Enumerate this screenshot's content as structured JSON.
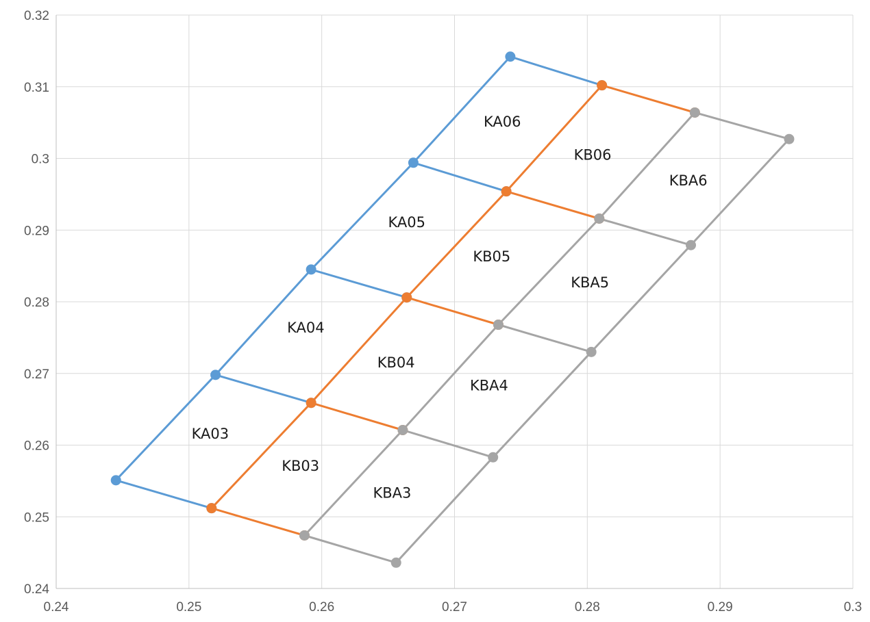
{
  "chart_data": {
    "type": "scatter",
    "title": "",
    "xlabel": "",
    "ylabel": "",
    "xlim": [
      0.24,
      0.3
    ],
    "ylim": [
      0.24,
      0.32
    ],
    "x_ticks": [
      0.24,
      0.25,
      0.26,
      0.27,
      0.28,
      0.29,
      0.3
    ],
    "x_tick_labels": [
      "0.24",
      "0.25",
      "0.26",
      "0.27",
      "0.28",
      "0.29",
      "0.3"
    ],
    "y_ticks": [
      0.24,
      0.25,
      0.26,
      0.27,
      0.28,
      0.29,
      0.3,
      0.31,
      0.32
    ],
    "y_tick_labels": [
      "0.24",
      "0.25",
      "0.26",
      "0.27",
      "0.28",
      "0.29",
      "0.3",
      "0.31",
      "0.32"
    ],
    "grid": true,
    "legend": "none",
    "lines": [
      {
        "color": "#5b9bd5",
        "markers": true,
        "points": [
          [
            0.2445,
            0.2551
          ],
          [
            0.2517,
            0.2512
          ]
        ]
      },
      {
        "color": "#5b9bd5",
        "markers": true,
        "points": [
          [
            0.252,
            0.2698
          ],
          [
            0.2592,
            0.2659
          ]
        ]
      },
      {
        "color": "#5b9bd5",
        "markers": true,
        "points": [
          [
            0.2592,
            0.2845
          ],
          [
            0.2664,
            0.2806
          ]
        ]
      },
      {
        "color": "#5b9bd5",
        "markers": true,
        "points": [
          [
            0.2669,
            0.2994
          ],
          [
            0.2739,
            0.2954
          ]
        ]
      },
      {
        "color": "#5b9bd5",
        "markers": true,
        "points": [
          [
            0.2742,
            0.3142
          ],
          [
            0.2811,
            0.3102
          ]
        ]
      },
      {
        "color": "#5b9bd5",
        "markers": true,
        "points": [
          [
            0.2445,
            0.2551
          ],
          [
            0.252,
            0.2698
          ],
          [
            0.2592,
            0.2845
          ],
          [
            0.2669,
            0.2994
          ],
          [
            0.2742,
            0.3142
          ]
        ]
      },
      {
        "color": "#ed7d31",
        "markers": true,
        "points": [
          [
            0.2517,
            0.2512
          ],
          [
            0.2587,
            0.2474
          ]
        ]
      },
      {
        "color": "#ed7d31",
        "markers": true,
        "points": [
          [
            0.2592,
            0.2659
          ],
          [
            0.2661,
            0.2621
          ]
        ]
      },
      {
        "color": "#ed7d31",
        "markers": true,
        "points": [
          [
            0.2664,
            0.2806
          ],
          [
            0.2733,
            0.2768
          ]
        ]
      },
      {
        "color": "#ed7d31",
        "markers": true,
        "points": [
          [
            0.2739,
            0.2954
          ],
          [
            0.2809,
            0.2916
          ]
        ]
      },
      {
        "color": "#ed7d31",
        "markers": true,
        "points": [
          [
            0.2811,
            0.3102
          ],
          [
            0.2881,
            0.3064
          ]
        ]
      },
      {
        "color": "#ed7d31",
        "markers": true,
        "points": [
          [
            0.2517,
            0.2512
          ],
          [
            0.2592,
            0.2659
          ],
          [
            0.2664,
            0.2806
          ],
          [
            0.2739,
            0.2954
          ],
          [
            0.2811,
            0.3102
          ]
        ]
      },
      {
        "color": "#a5a5a5",
        "markers": true,
        "points": [
          [
            0.2587,
            0.2474
          ],
          [
            0.2656,
            0.2436
          ]
        ]
      },
      {
        "color": "#a5a5a5",
        "markers": true,
        "points": [
          [
            0.2661,
            0.2621
          ],
          [
            0.2729,
            0.2583
          ]
        ]
      },
      {
        "color": "#a5a5a5",
        "markers": true,
        "points": [
          [
            0.2733,
            0.2768
          ],
          [
            0.2803,
            0.273
          ]
        ]
      },
      {
        "color": "#a5a5a5",
        "markers": true,
        "points": [
          [
            0.2809,
            0.2916
          ],
          [
            0.2878,
            0.2879
          ]
        ]
      },
      {
        "color": "#a5a5a5",
        "markers": true,
        "points": [
          [
            0.2881,
            0.3064
          ],
          [
            0.2952,
            0.3027
          ]
        ]
      },
      {
        "color": "#a5a5a5",
        "markers": true,
        "points": [
          [
            0.2587,
            0.2474
          ],
          [
            0.2661,
            0.2621
          ],
          [
            0.2733,
            0.2768
          ],
          [
            0.2809,
            0.2916
          ],
          [
            0.2881,
            0.3064
          ]
        ]
      },
      {
        "color": "#a5a5a5",
        "markers": true,
        "points": [
          [
            0.2656,
            0.2436
          ],
          [
            0.2729,
            0.2583
          ],
          [
            0.2803,
            0.273
          ],
          [
            0.2878,
            0.2879
          ],
          [
            0.2952,
            0.3027
          ]
        ]
      }
    ],
    "annotations": [
      {
        "text": "KA03",
        "x": 0.2516,
        "y": 0.2615
      },
      {
        "text": "KA04",
        "x": 0.2588,
        "y": 0.2763
      },
      {
        "text": "KA05",
        "x": 0.2664,
        "y": 0.291
      },
      {
        "text": "KA06",
        "x": 0.2736,
        "y": 0.305
      },
      {
        "text": "KB03",
        "x": 0.2584,
        "y": 0.257
      },
      {
        "text": "KB04",
        "x": 0.2656,
        "y": 0.2714
      },
      {
        "text": "KB05",
        "x": 0.2728,
        "y": 0.2862
      },
      {
        "text": "KB06",
        "x": 0.2804,
        "y": 0.3004
      },
      {
        "text": "KBA3",
        "x": 0.2653,
        "y": 0.2532
      },
      {
        "text": "KBA4",
        "x": 0.2726,
        "y": 0.2682
      },
      {
        "text": "KBA5",
        "x": 0.2802,
        "y": 0.2826
      },
      {
        "text": "KBA6",
        "x": 0.2876,
        "y": 0.2968
      }
    ]
  }
}
